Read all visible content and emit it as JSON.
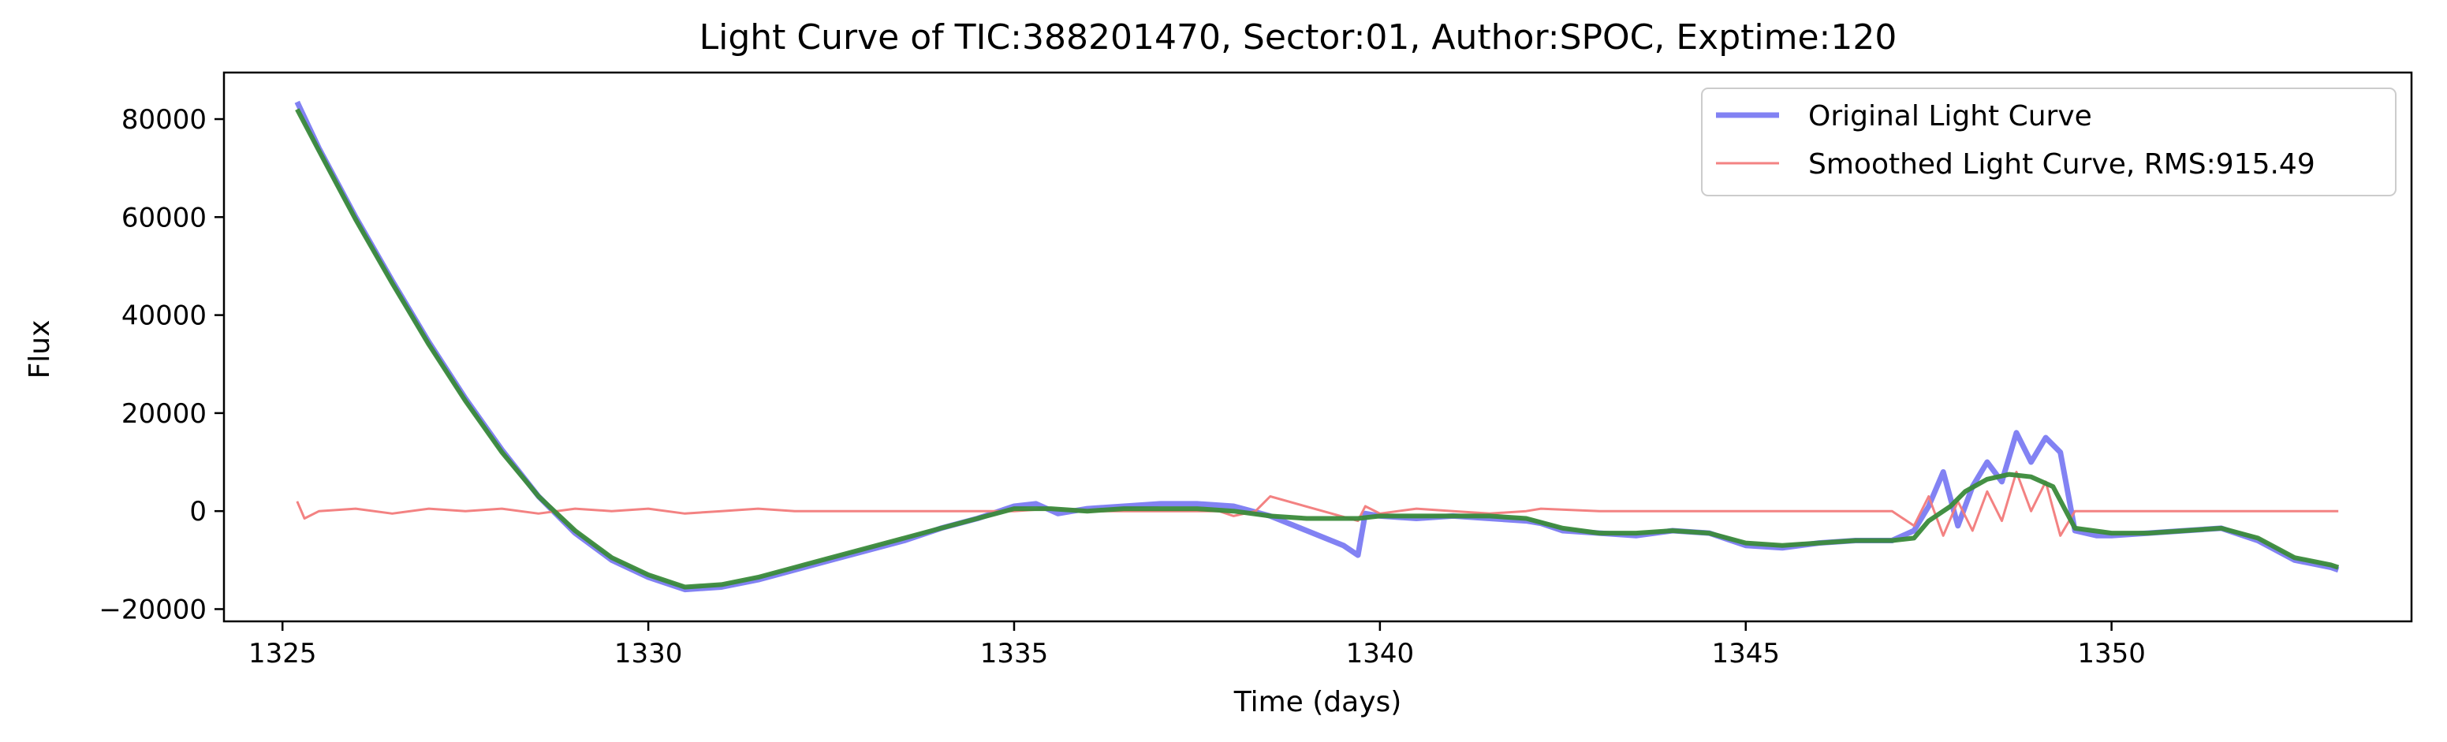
{
  "chart_data": {
    "type": "line",
    "title": "Light Curve of TIC:388201470, Sector:01, Author:SPOC, Exptime:120",
    "xlabel": "Time (days)",
    "ylabel": "Flux",
    "xlim": [
      1324.2,
      1354.1
    ],
    "ylim": [
      -22500,
      89500
    ],
    "xticks": [
      1325,
      1330,
      1335,
      1340,
      1345,
      1350
    ],
    "xtick_labels": [
      "1325",
      "1330",
      "1335",
      "1340",
      "1345",
      "1350"
    ],
    "yticks": [
      -20000,
      0,
      20000,
      40000,
      60000,
      80000
    ],
    "ytick_labels": [
      "−20000",
      "0",
      "20000",
      "40000",
      "60000",
      "80000"
    ],
    "grid": false,
    "legend_position": "top-right",
    "legend": [
      {
        "label": "Original Light Curve",
        "color": "#7b7bf2",
        "width": "thick"
      },
      {
        "label": "Smoothed Light Curve, RMS:915.49",
        "color": "#f27b7b",
        "width": "thin"
      }
    ],
    "colors": {
      "original": "#7b7bf2",
      "residual": "#f27b7b",
      "smoothed": "#3a8a3a"
    },
    "series": [
      {
        "name": "Original Light Curve",
        "x": [
          1325.2,
          1325.5,
          1326.0,
          1326.5,
          1327.0,
          1327.5,
          1328.0,
          1328.5,
          1329.0,
          1329.5,
          1330.0,
          1330.5,
          1331.0,
          1331.5,
          1332.0,
          1332.5,
          1333.0,
          1333.5,
          1334.0,
          1334.5,
          1335.0,
          1335.3,
          1335.6,
          1336.0,
          1336.5,
          1337.0,
          1337.5,
          1338.0,
          1338.5,
          1339.0,
          1339.5,
          1339.7,
          1339.8,
          1340.0,
          1340.5,
          1341.0,
          1341.5,
          1342.0,
          1342.2,
          1342.5,
          1343.0,
          1343.5,
          1344.0,
          1344.5,
          1345.0,
          1345.5,
          1346.0,
          1346.5,
          1347.0,
          1347.3,
          1347.5,
          1347.7,
          1347.9,
          1348.1,
          1348.3,
          1348.5,
          1348.7,
          1348.9,
          1349.1,
          1349.3,
          1349.5,
          1349.8,
          1350.0,
          1350.5,
          1351.0,
          1351.5,
          1352.0,
          1352.5,
          1353.0,
          1353.1
        ],
        "y": [
          83500,
          74000,
          60000,
          47000,
          34500,
          23000,
          12500,
          3000,
          -4500,
          -10000,
          -13500,
          -16000,
          -15500,
          -14000,
          -12000,
          -10000,
          -8000,
          -6000,
          -3500,
          -1500,
          1000,
          1500,
          -500,
          500,
          1000,
          1500,
          1500,
          1000,
          -1000,
          -4000,
          -7000,
          -9000,
          -500,
          -1000,
          -1500,
          -1000,
          -1500,
          -2000,
          -2500,
          -4000,
          -4500,
          -5000,
          -4000,
          -4500,
          -7000,
          -7500,
          -6500,
          -6000,
          -6000,
          -4000,
          1000,
          8000,
          -3000,
          5000,
          10000,
          6000,
          16000,
          10000,
          15000,
          12000,
          -4000,
          -5000,
          -5000,
          -4500,
          -4000,
          -3500,
          -6000,
          -10000,
          -11500,
          -12000
        ]
      },
      {
        "name": "Smoothed Light Curve, RMS:915.49",
        "x": [
          1325.2,
          1325.3,
          1325.5,
          1326.0,
          1326.5,
          1327.0,
          1327.5,
          1328.0,
          1328.5,
          1329.0,
          1329.5,
          1330.0,
          1330.5,
          1331.0,
          1331.5,
          1332.0,
          1333.0,
          1334.0,
          1335.0,
          1335.5,
          1336.0,
          1337.0,
          1337.8,
          1338.0,
          1338.3,
          1338.5,
          1339.7,
          1339.8,
          1340.0,
          1340.5,
          1341.0,
          1341.5,
          1342.0,
          1342.2,
          1343.0,
          1344.0,
          1345.0,
          1346.0,
          1347.0,
          1347.3,
          1347.5,
          1347.7,
          1347.9,
          1348.1,
          1348.3,
          1348.5,
          1348.7,
          1348.9,
          1349.1,
          1349.3,
          1349.5,
          1350.0,
          1351.0,
          1352.0,
          1353.0,
          1353.1
        ],
        "y": [
          2000,
          -1500,
          0,
          500,
          -500,
          500,
          0,
          500,
          -500,
          500,
          0,
          500,
          -500,
          0,
          500,
          0,
          0,
          0,
          0,
          500,
          0,
          0,
          0,
          -1000,
          0,
          3000,
          -2000,
          1000,
          -500,
          500,
          0,
          -500,
          0,
          500,
          0,
          0,
          0,
          0,
          0,
          -3000,
          3000,
          -5000,
          2000,
          -4000,
          4000,
          -2000,
          8000,
          0,
          6000,
          -5000,
          0,
          0,
          0,
          0,
          0,
          0
        ]
      },
      {
        "name": "",
        "x": [
          1325.2,
          1325.5,
          1326.0,
          1326.5,
          1327.0,
          1327.5,
          1328.0,
          1328.5,
          1329.0,
          1329.5,
          1330.0,
          1330.5,
          1331.0,
          1331.5,
          1332.0,
          1332.5,
          1333.0,
          1333.5,
          1334.0,
          1334.5,
          1335.0,
          1335.5,
          1336.0,
          1336.5,
          1337.0,
          1337.5,
          1338.0,
          1338.5,
          1339.0,
          1339.7,
          1340.0,
          1340.5,
          1341.0,
          1341.5,
          1342.0,
          1342.5,
          1343.0,
          1343.5,
          1344.0,
          1344.5,
          1345.0,
          1345.5,
          1346.0,
          1346.5,
          1347.0,
          1347.3,
          1347.5,
          1347.8,
          1348.0,
          1348.3,
          1348.6,
          1348.9,
          1349.2,
          1349.5,
          1350.0,
          1350.5,
          1351.0,
          1351.5,
          1352.0,
          1352.5,
          1353.0,
          1353.1
        ],
        "y": [
          82000,
          73500,
          59500,
          46500,
          34000,
          22500,
          12000,
          3000,
          -4000,
          -9500,
          -13000,
          -15500,
          -15000,
          -13500,
          -11500,
          -9500,
          -7500,
          -5500,
          -3500,
          -1500,
          500,
          500,
          0,
          500,
          500,
          500,
          0,
          -1000,
          -1500,
          -1500,
          -1000,
          -1000,
          -1000,
          -1000,
          -1500,
          -3500,
          -4500,
          -4500,
          -4000,
          -4500,
          -6500,
          -7000,
          -6500,
          -6000,
          -6000,
          -5500,
          -2000,
          1000,
          4000,
          6500,
          7500,
          7000,
          5000,
          -3500,
          -4500,
          -4500,
          -4000,
          -3500,
          -5500,
          -9500,
          -11000,
          -11500
        ]
      }
    ]
  }
}
